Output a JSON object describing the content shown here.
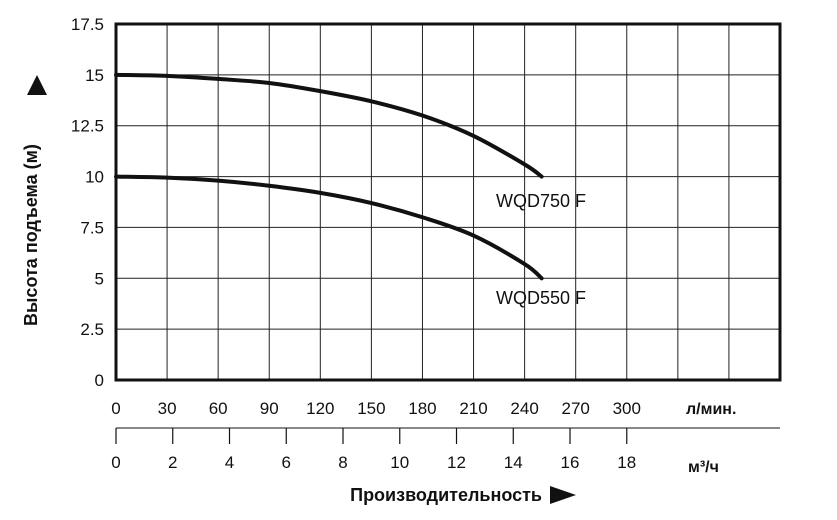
{
  "chart_data": {
    "type": "line",
    "ylabel": "Высота подъема (м)",
    "xlabel": "Производительность",
    "ylim": [
      0,
      17.5
    ],
    "y_ticks": [
      "0",
      "2.5",
      "5",
      "7.5",
      "10",
      "12.5",
      "15",
      "17.5"
    ],
    "x_lmin": {
      "unit": "л/мин.",
      "range": [
        0,
        390
      ],
      "ticks": [
        "0",
        "30",
        "60",
        "90",
        "120",
        "150",
        "180",
        "210",
        "240",
        "270",
        "300"
      ]
    },
    "x_m3h": {
      "unit": "м³/ч",
      "ticks": [
        "0",
        "2",
        "4",
        "6",
        "8",
        "10",
        "12",
        "14",
        "16",
        "18"
      ]
    },
    "grid": true,
    "series": [
      {
        "name": "WQD750 F",
        "x": [
          0,
          30,
          60,
          90,
          120,
          150,
          180,
          210,
          240,
          250
        ],
        "y": [
          15,
          14.95,
          14.8,
          14.6,
          14.2,
          13.7,
          13,
          12,
          10.6,
          10
        ]
      },
      {
        "name": "WQD550 F",
        "x": [
          0,
          30,
          60,
          90,
          120,
          150,
          180,
          210,
          240,
          250
        ],
        "y": [
          10,
          9.95,
          9.8,
          9.55,
          9.2,
          8.7,
          8,
          7.1,
          5.7,
          5
        ]
      }
    ],
    "color": "#111111"
  }
}
